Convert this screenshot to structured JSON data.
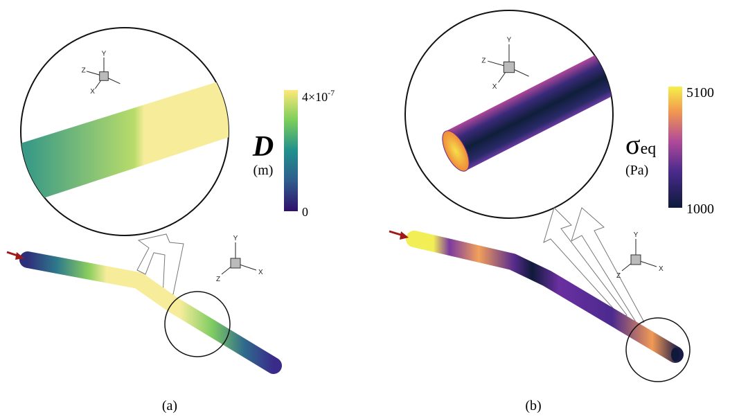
{
  "panels": [
    {
      "caption": "(a)",
      "colorbar": {
        "top_label": {
          "base": "4×10",
          "exponent": "-7"
        },
        "bottom_label": "0",
        "symbol": "D",
        "unit": "(m)"
      },
      "zoom_triad": {
        "y": "Y",
        "z": "Z",
        "x": "X"
      },
      "pipe_triad": {
        "y": "Y",
        "z": "Z",
        "x": "X"
      }
    },
    {
      "caption": "(b)",
      "colorbar": {
        "top_label": "5100",
        "bottom_label": "1000",
        "symbol": {
          "base": "σ",
          "subscript": "eq"
        },
        "unit": "(Pa)"
      },
      "zoom_triad": {
        "y": "Y",
        "z": "Z",
        "x": "X"
      },
      "pipe_triad": {
        "y": "Y",
        "z": "Z",
        "x": "X"
      }
    }
  ]
}
